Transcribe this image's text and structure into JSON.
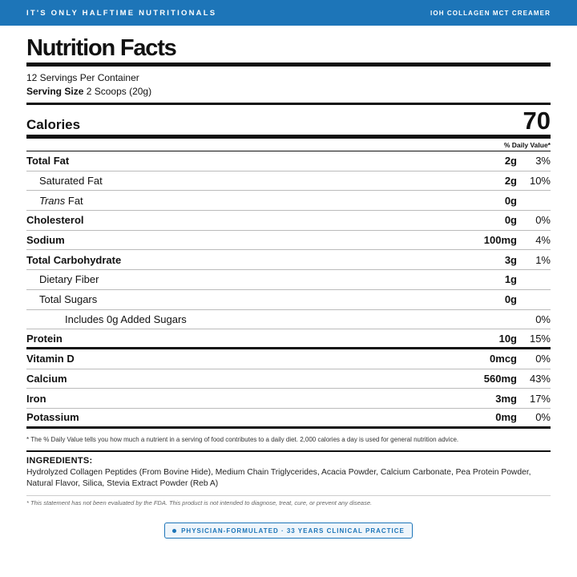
{
  "header": {
    "brand": "IT'S ONLY HALFTIME NUTRITIONALS",
    "product": "IOH COLLAGEN MCT CREAMER",
    "color": "#1d75b8"
  },
  "label": {
    "title": "Nutrition Facts",
    "servings_per_container": "12 Servings Per Container",
    "serving_size_label": "Serving Size",
    "serving_size_value": "2 Scoops (20g)",
    "calories_label": "Calories",
    "calories_value": "70",
    "dv_header": "% Daily Value*"
  },
  "nutrients": [
    {
      "name": "Total Fat",
      "amount": "2g",
      "dv": "3%"
    },
    {
      "name": "Saturated Fat",
      "amount": "2g",
      "dv": "10%"
    },
    {
      "name_italic": "Trans",
      "name_rest": " Fat",
      "amount": "0g",
      "dv": ""
    },
    {
      "name": "Cholesterol",
      "amount": "0g",
      "dv": "0%"
    },
    {
      "name": "Sodium",
      "amount": "100mg",
      "dv": "4%"
    },
    {
      "name": "Total Carbohydrate",
      "amount": "3g",
      "dv": "1%"
    },
    {
      "name": "Dietary Fiber",
      "amount": "1g",
      "dv": ""
    },
    {
      "name": "Total Sugars",
      "amount": "0g",
      "dv": ""
    },
    {
      "name": "Includes 0g Added Sugars",
      "amount": "",
      "dv": "0%"
    },
    {
      "name": "Protein",
      "amount": "10g",
      "dv": "15%"
    },
    {
      "name": "Vitamin D",
      "amount": "0mcg",
      "dv": "0%"
    },
    {
      "name": "Calcium",
      "amount": "560mg",
      "dv": "43%"
    },
    {
      "name": "Iron",
      "amount": "3mg",
      "dv": "17%"
    },
    {
      "name": "Potassium",
      "amount": "0mg",
      "dv": "0%"
    }
  ],
  "footnote": "* The % Daily Value tells you how much a nutrient in a serving of food contributes to a daily diet. 2,000 calories a day is used for general nutrition advice.",
  "ingredients": {
    "title": "INGREDIENTS:",
    "text": "Hydrolyzed Collagen Peptides (From Bovine Hide), Medium Chain Triglycerides, Acacia Powder, Calcium Carbonate, Pea Protein Powder, Natural Flavor, Silica, Stevia Extract Powder (Reb A)"
  },
  "disclaimer": "* This statement has not been evaluated by the FDA. This product is not intended to diagnose, treat, cure, or prevent any disease.",
  "badge": "PHYSICIAN-FORMULATED · 33 YEARS CLINICAL PRACTICE"
}
